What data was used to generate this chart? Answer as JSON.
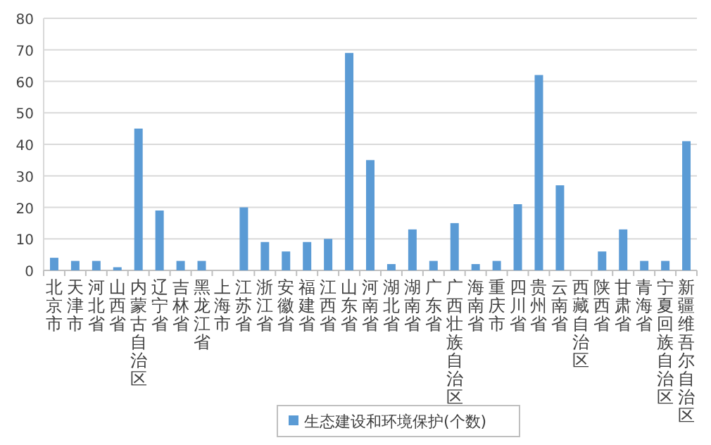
{
  "chart_data": {
    "type": "bar",
    "categories": [
      "北京市",
      "天津市",
      "河北省",
      "山西省",
      "内蒙古自治区",
      "辽宁省",
      "吉林省",
      "黑龙江省",
      "上海市",
      "江苏省",
      "浙江省",
      "安徽省",
      "福建省",
      "江西省",
      "山东省",
      "河南省",
      "湖北省",
      "湖南省",
      "广东省",
      "广西壮族自治区",
      "海南省",
      "重庆市",
      "四川省",
      "贵州省",
      "云南省",
      "西藏自治区",
      "陕西省",
      "甘肃省",
      "青海省",
      "宁夏回族自治区",
      "新疆维吾尔自治区"
    ],
    "series": [
      {
        "name": "生态建设和环境保护(个数)",
        "color": "#5b9bd5",
        "values": [
          4,
          3,
          3,
          1,
          45,
          19,
          3,
          3,
          0,
          20,
          9,
          6,
          9,
          10,
          69,
          35,
          2,
          13,
          3,
          15,
          2,
          3,
          21,
          62,
          27,
          0,
          6,
          13,
          3,
          3,
          41
        ]
      }
    ],
    "ylim": [
      0,
      80
    ],
    "yticks": [
      0,
      10,
      20,
      30,
      40,
      50,
      60,
      70,
      80
    ],
    "grid": "y",
    "legend": "bottom"
  }
}
